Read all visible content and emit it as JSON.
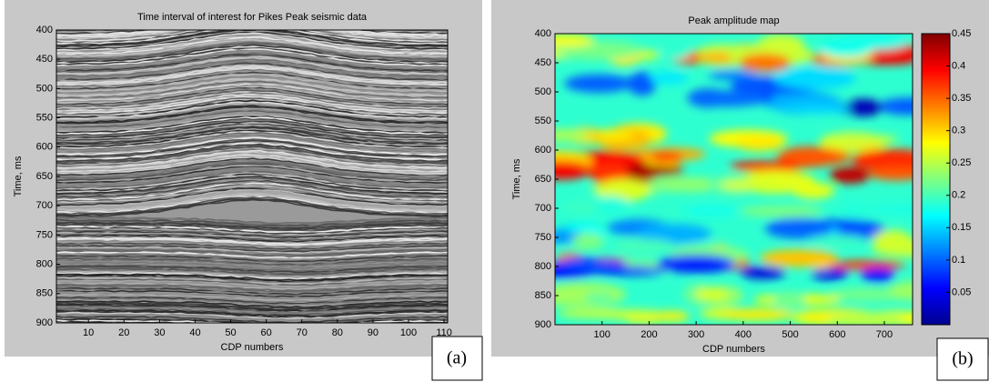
{
  "chart_data": [
    {
      "type": "image",
      "title": "Time interval of interest for Pikes Peak seismic data",
      "xlabel": "CDP numbers",
      "ylabel": "Time, ms",
      "colormap": "gray",
      "xlim": [
        1,
        111
      ],
      "xticks": [
        10,
        20,
        30,
        40,
        50,
        60,
        70,
        80,
        90,
        100,
        110
      ],
      "ylim": [
        400,
        900
      ],
      "yticks": [
        400,
        450,
        500,
        550,
        600,
        650,
        700,
        750,
        800,
        850,
        900
      ],
      "panel_label": "(a)"
    },
    {
      "type": "heatmap",
      "title": "Peak amplitude map",
      "xlabel": "CDP numbers",
      "ylabel": "Time, ms",
      "colormap": "jet",
      "xlim": [
        0,
        760
      ],
      "xticks": [
        100,
        200,
        300,
        400,
        500,
        600,
        700
      ],
      "ylim": [
        400,
        900
      ],
      "yticks": [
        400,
        450,
        500,
        550,
        600,
        650,
        700,
        750,
        800,
        850,
        900
      ],
      "clim": [
        0,
        0.45
      ],
      "cticks": [
        0.05,
        0.1,
        0.15,
        0.2,
        0.25,
        0.3,
        0.35,
        0.4,
        0.45
      ],
      "panel_label": "(b)"
    }
  ]
}
